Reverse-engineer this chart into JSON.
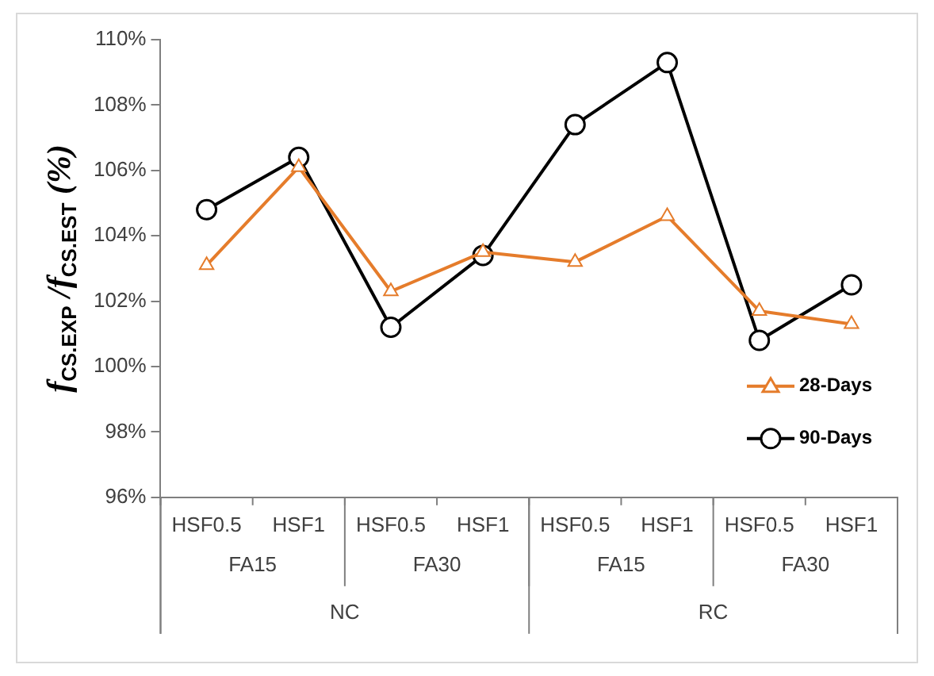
{
  "chart_data": {
    "type": "line",
    "ylabel": "f$_{CS.EXP}$ /f$_{CS.EST}$ (%)",
    "categories": [
      "HSF0.5",
      "HSF1",
      "HSF0.5",
      "HSF1",
      "HSF0.5",
      "HSF1",
      "HSF0.5",
      "HSF1"
    ],
    "series": [
      {
        "name": "28-Days",
        "color": "#e57c2b",
        "marker": "triangle",
        "values": [
          103.1,
          106.1,
          102.3,
          103.5,
          103.2,
          104.6,
          101.7,
          101.3
        ]
      },
      {
        "name": "90-Days",
        "color": "#000000",
        "marker": "circle",
        "values": [
          104.8,
          106.4,
          101.2,
          103.4,
          107.4,
          109.3,
          100.8,
          102.5
        ]
      }
    ],
    "ylim": [
      96,
      110
    ],
    "yticks": [
      {
        "value": 96,
        "label": "96%"
      },
      {
        "value": 98,
        "label": "98%"
      },
      {
        "value": 100,
        "label": "100%"
      },
      {
        "value": 102,
        "label": "102%"
      },
      {
        "value": 104,
        "label": "104%"
      },
      {
        "value": 106,
        "label": "106%"
      },
      {
        "value": 108,
        "label": "108%"
      },
      {
        "value": 110,
        "label": "110%"
      }
    ],
    "annotations": [
      "FA15",
      "FA30",
      "FA15",
      "FA30",
      "NC",
      "RC"
    ],
    "grid": false,
    "legend": "bottom right",
    "line_style": "solid"
  }
}
